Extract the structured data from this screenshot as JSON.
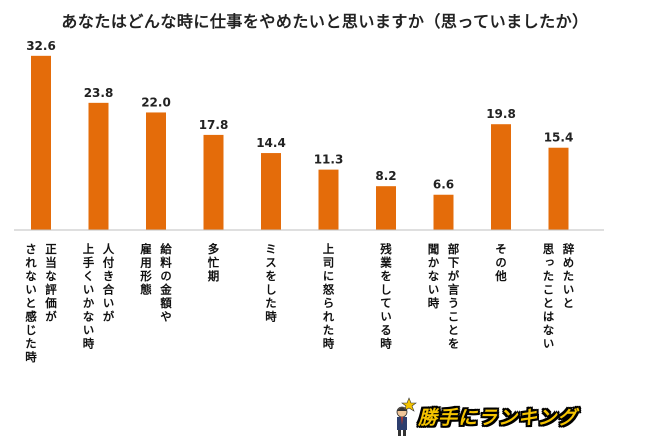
{
  "chart_data": {
    "type": "bar",
    "title": "あなたはどんな時に仕事をやめたいと思いますか（思っていましたか）",
    "categories": [
      "正当な評価が\nされないと感じた時",
      "人付き合いが\n上手くいかない時",
      "給料の金額や\n雇用形態",
      "多忙期",
      "ミスをした時",
      "上司に怒られた時",
      "残業をしている時",
      "部下が言うことを\n聞かない時",
      "その他",
      "辞めたいと\n思ったことはない"
    ],
    "values": [
      32.6,
      23.8,
      22.0,
      17.8,
      14.4,
      11.3,
      8.2,
      6.6,
      19.8,
      15.4
    ],
    "value_labels": [
      "32.6",
      "23.8",
      "22.0",
      "17.8",
      "14.4",
      "11.3",
      "8.2",
      "6.6",
      "19.8",
      "15.4"
    ],
    "ylim": [
      0,
      35
    ],
    "grid": false,
    "colors": {
      "bar": "#e46c0a",
      "axis": "#bfbfbf"
    }
  },
  "logo": {
    "text": "勝手にランキング"
  }
}
